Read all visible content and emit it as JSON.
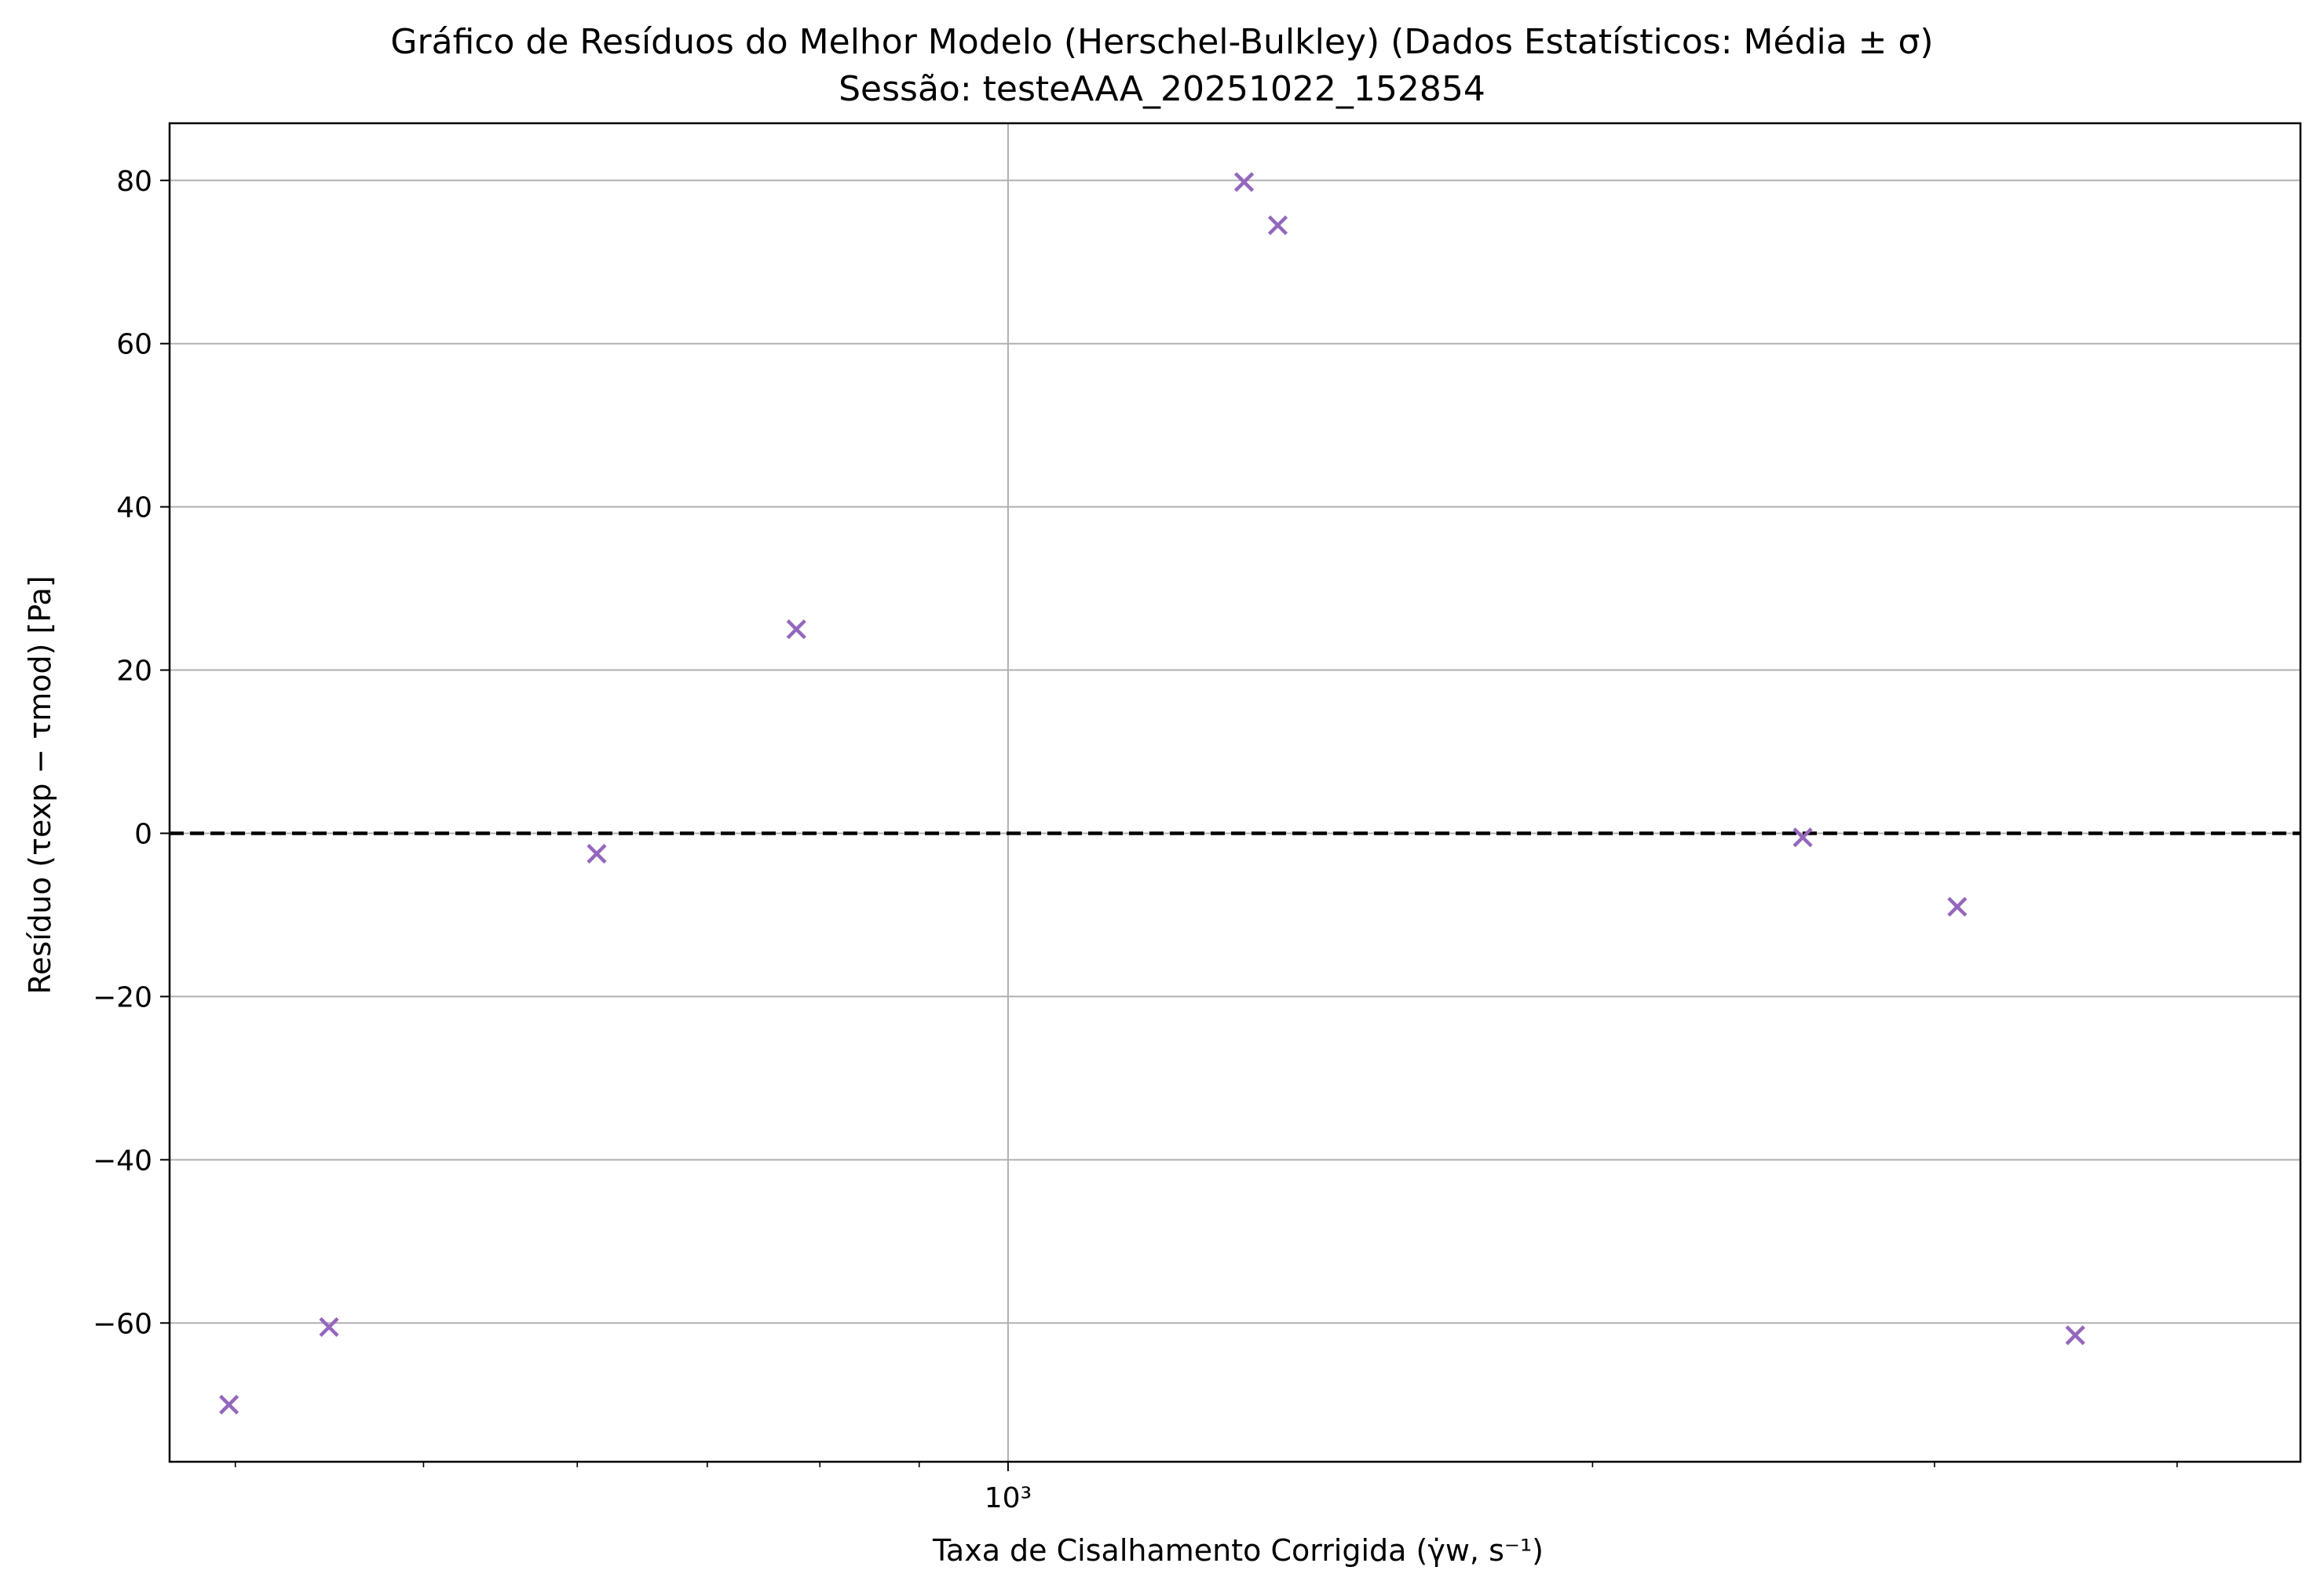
{
  "chart_data": {
    "type": "scatter",
    "title": "Gráfico de Resíduos do Melhor Modelo (Herschel-Bulkley) (Dados Estatísticos: Média ± σ)",
    "subtitle": "Sessão: testeAAA_20251022_152854",
    "xlabel": "Taxa de Cisalhamento Corrigida (γ̇w, s⁻¹)",
    "ylabel": "Resíduo (τexp − τmod) [Pa]",
    "xscale": "log",
    "xlim": [
      370,
      4630
    ],
    "ylim": [
      -77,
      87
    ],
    "grid": true,
    "x_tick_labels": [
      {
        "value": 1000,
        "label": "10³"
      }
    ],
    "x_minor_ticks": [
      400,
      500,
      600,
      700,
      800,
      900,
      2000,
      3000,
      4000
    ],
    "y_ticks": [
      80,
      60,
      40,
      20,
      0,
      -20,
      -40,
      -60
    ],
    "y_tick_labels": [
      "80",
      "60",
      "40",
      "20",
      "0",
      "−20",
      "−40",
      "−60"
    ],
    "reference_line": {
      "y": 0,
      "style": "dashed",
      "color": "#000000"
    },
    "series": [
      {
        "marker": "x",
        "color": "#9467bd",
        "x": [
          397,
          447,
          614,
          778,
          1323,
          1377,
          2566,
          3082,
          3545
        ],
        "y": [
          -70,
          -60.5,
          -2.5,
          25,
          79.8,
          74.5,
          -0.5,
          -9,
          -61.5
        ]
      }
    ]
  }
}
